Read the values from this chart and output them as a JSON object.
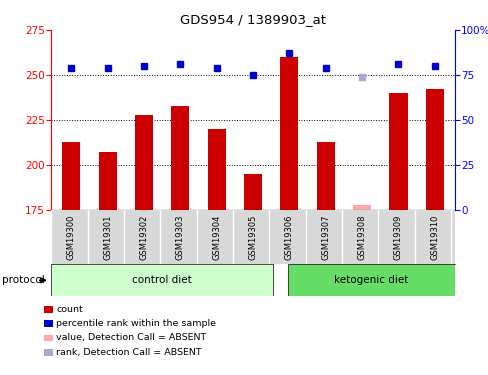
{
  "title": "GDS954 / 1389903_at",
  "samples": [
    "GSM19300",
    "GSM19301",
    "GSM19302",
    "GSM19303",
    "GSM19304",
    "GSM19305",
    "GSM19306",
    "GSM19307",
    "GSM19308",
    "GSM19309",
    "GSM19310"
  ],
  "bar_values": [
    213,
    207,
    228,
    233,
    220,
    195,
    260,
    213,
    178,
    240,
    242
  ],
  "bar_colors": [
    "#cc0000",
    "#cc0000",
    "#cc0000",
    "#cc0000",
    "#cc0000",
    "#cc0000",
    "#cc0000",
    "#cc0000",
    "#ffaaaa",
    "#cc0000",
    "#cc0000"
  ],
  "rank_values": [
    79,
    79,
    80,
    81,
    79,
    75,
    87,
    79,
    74,
    81,
    80
  ],
  "rank_colors": [
    "#0000cc",
    "#0000cc",
    "#0000cc",
    "#0000cc",
    "#0000cc",
    "#0000cc",
    "#0000cc",
    "#0000cc",
    "#aaaacc",
    "#0000cc",
    "#0000cc"
  ],
  "ylim_left": [
    175,
    275
  ],
  "ylim_right": [
    0,
    100
  ],
  "yticks_left": [
    175,
    200,
    225,
    250,
    275
  ],
  "yticks_right": [
    0,
    25,
    50,
    75,
    100
  ],
  "ytick_labels_right": [
    "0",
    "25",
    "50",
    "75",
    "100%"
  ],
  "grid_values": [
    200,
    225,
    250
  ],
  "group1_label": "control diet",
  "group2_label": "ketogenic diet",
  "group1_indices": [
    0,
    1,
    2,
    3,
    4,
    5
  ],
  "group2_indices": [
    6,
    7,
    8,
    9,
    10
  ],
  "protocol_label": "protocol",
  "group1_color": "#ccffcc",
  "group2_color": "#66dd66",
  "bar_width": 0.5,
  "legend_items": [
    {
      "color": "#cc0000",
      "label": "count"
    },
    {
      "color": "#0000cc",
      "label": "percentile rank within the sample"
    },
    {
      "color": "#ffaaaa",
      "label": "value, Detection Call = ABSENT"
    },
    {
      "color": "#aaaacc",
      "label": "rank, Detection Call = ABSENT"
    }
  ]
}
